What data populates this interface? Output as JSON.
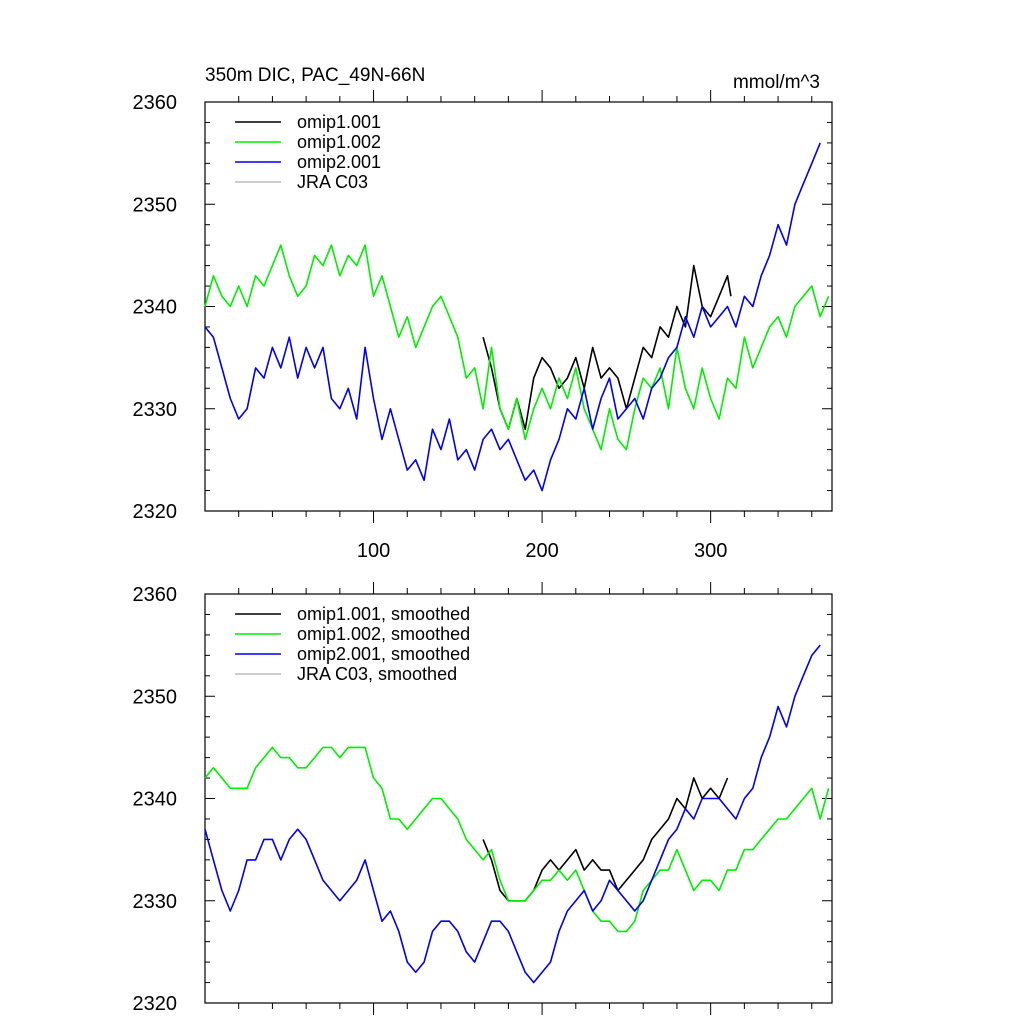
{
  "chart_data": [
    {
      "type": "line",
      "title": "350m DIC, PAC_49N-66N",
      "units": "mmol/m^3",
      "xlabel": "",
      "ylabel": "",
      "xlim": [
        0,
        372
      ],
      "ylim": [
        2320,
        2360
      ],
      "x_ticks": [
        100,
        200,
        300
      ],
      "y_ticks": [
        2320,
        2330,
        2340,
        2350,
        2360
      ],
      "legend": [
        "omip1.001",
        "omip1.002",
        "omip2.001",
        "JRA C03"
      ],
      "series": [
        {
          "name": "omip1.001",
          "color": "#000000",
          "x": [
            165,
            170,
            175,
            180,
            185,
            190,
            195,
            200,
            205,
            210,
            215,
            220,
            225,
            230,
            235,
            240,
            245,
            250,
            255,
            260,
            265,
            270,
            275,
            280,
            285,
            290,
            295,
            300,
            305,
            310,
            312
          ],
          "y": [
            2337,
            2334,
            2330,
            2328,
            2331,
            2328,
            2333,
            2335,
            2334,
            2332,
            2333,
            2335,
            2332,
            2336,
            2333,
            2334,
            2333,
            2330,
            2333,
            2336,
            2335,
            2338,
            2337,
            2340,
            2338,
            2344,
            2340,
            2339,
            2341,
            2343,
            2341
          ]
        },
        {
          "name": "omip1.002",
          "color": "#00ee00",
          "x": [
            0,
            5,
            10,
            15,
            20,
            25,
            30,
            35,
            40,
            45,
            50,
            55,
            60,
            65,
            70,
            75,
            80,
            85,
            90,
            95,
            100,
            105,
            110,
            115,
            120,
            125,
            130,
            135,
            140,
            145,
            150,
            155,
            160,
            165,
            170,
            175,
            180,
            185,
            190,
            195,
            200,
            205,
            210,
            215,
            220,
            225,
            230,
            235,
            240,
            245,
            250,
            255,
            260,
            265,
            270,
            275,
            280,
            285,
            290,
            295,
            300,
            305,
            310,
            315,
            320,
            325,
            330,
            335,
            340,
            345,
            350,
            355,
            360,
            365,
            370
          ],
          "y": [
            2340,
            2343,
            2341,
            2340,
            2342,
            2340,
            2343,
            2342,
            2344,
            2346,
            2343,
            2341,
            2342,
            2345,
            2344,
            2346,
            2343,
            2345,
            2344,
            2346,
            2341,
            2343,
            2340,
            2337,
            2339,
            2336,
            2338,
            2340,
            2341,
            2339,
            2337,
            2333,
            2334,
            2330,
            2336,
            2330,
            2328,
            2331,
            2327,
            2330,
            2332,
            2330,
            2333,
            2331,
            2334,
            2330,
            2328,
            2326,
            2330,
            2327,
            2326,
            2330,
            2333,
            2332,
            2334,
            2330,
            2336,
            2332,
            2330,
            2334,
            2331,
            2329,
            2333,
            2332,
            2337,
            2334,
            2336,
            2338,
            2339,
            2337,
            2340,
            2341,
            2342,
            2339,
            2341
          ]
        },
        {
          "name": "omip2.001",
          "color": "#0000ee",
          "x": [
            0,
            5,
            10,
            15,
            20,
            25,
            30,
            35,
            40,
            45,
            50,
            55,
            60,
            65,
            70,
            75,
            80,
            85,
            90,
            95,
            100,
            105,
            110,
            115,
            120,
            125,
            130,
            135,
            140,
            145,
            150,
            155,
            160,
            165,
            170,
            175,
            180,
            185,
            190,
            195,
            200,
            205,
            210,
            215,
            220,
            225,
            230,
            235,
            240,
            245,
            250,
            255,
            260,
            265,
            270,
            275,
            280,
            285,
            290,
            295,
            300,
            305,
            310,
            315,
            320,
            325,
            330,
            335,
            340,
            345,
            350,
            355,
            360,
            365
          ],
          "y": [
            2338,
            2337,
            2334,
            2331,
            2329,
            2330,
            2334,
            2333,
            2336,
            2334,
            2337,
            2333,
            2336,
            2334,
            2336,
            2331,
            2330,
            2332,
            2329,
            2336,
            2331,
            2327,
            2330,
            2327,
            2324,
            2325,
            2323,
            2328,
            2326,
            2329,
            2325,
            2326,
            2324,
            2327,
            2328,
            2326,
            2327,
            2325,
            2323,
            2324,
            2322,
            2325,
            2327,
            2330,
            2329,
            2332,
            2328,
            2331,
            2333,
            2329,
            2330,
            2331,
            2329,
            2332,
            2333,
            2335,
            2336,
            2339,
            2337,
            2340,
            2338,
            2339,
            2340,
            2338,
            2341,
            2340,
            2343,
            2345,
            2348,
            2346,
            2350,
            2352,
            2354,
            2356
          ]
        },
        {
          "name": "JRA C03",
          "color": "#bbbbbb",
          "x": [],
          "y": []
        }
      ]
    },
    {
      "type": "line",
      "title": "",
      "units": "",
      "xlabel": "",
      "ylabel": "",
      "xlim": [
        0,
        372
      ],
      "ylim": [
        2320,
        2360
      ],
      "x_ticks": [
        100,
        200,
        300
      ],
      "y_ticks": [
        2320,
        2330,
        2340,
        2350,
        2360
      ],
      "legend": [
        "omip1.001, smoothed",
        "omip1.002, smoothed",
        "omip2.001, smoothed",
        "JRA C03, smoothed"
      ],
      "series": [
        {
          "name": "omip1.001, smoothed",
          "color": "#000000",
          "x": [
            165,
            170,
            175,
            180,
            185,
            190,
            195,
            200,
            205,
            210,
            215,
            220,
            225,
            230,
            235,
            240,
            245,
            250,
            255,
            260,
            265,
            270,
            275,
            280,
            285,
            290,
            295,
            300,
            305,
            310
          ],
          "y": [
            2336,
            2334,
            2331,
            2330,
            2330,
            2330,
            2331,
            2333,
            2334,
            2333,
            2334,
            2335,
            2333,
            2334,
            2333,
            2333,
            2331,
            2332,
            2333,
            2334,
            2336,
            2337,
            2338,
            2340,
            2339,
            2342,
            2340,
            2341,
            2340,
            2342
          ]
        },
        {
          "name": "omip1.002, smoothed",
          "color": "#00ee00",
          "x": [
            0,
            5,
            10,
            15,
            20,
            25,
            30,
            35,
            40,
            45,
            50,
            55,
            60,
            65,
            70,
            75,
            80,
            85,
            90,
            95,
            100,
            105,
            110,
            115,
            120,
            125,
            130,
            135,
            140,
            145,
            150,
            155,
            160,
            165,
            170,
            175,
            180,
            185,
            190,
            195,
            200,
            205,
            210,
            215,
            220,
            225,
            230,
            235,
            240,
            245,
            250,
            255,
            260,
            265,
            270,
            275,
            280,
            285,
            290,
            295,
            300,
            305,
            310,
            315,
            320,
            325,
            330,
            335,
            340,
            345,
            350,
            355,
            360,
            365,
            370
          ],
          "y": [
            2342,
            2343,
            2342,
            2341,
            2341,
            2341,
            2343,
            2344,
            2345,
            2344,
            2344,
            2343,
            2343,
            2344,
            2345,
            2345,
            2344,
            2345,
            2345,
            2345,
            2342,
            2341,
            2338,
            2338,
            2337,
            2338,
            2339,
            2340,
            2340,
            2339,
            2338,
            2336,
            2335,
            2334,
            2335,
            2332,
            2330,
            2330,
            2330,
            2331,
            2332,
            2332,
            2333,
            2332,
            2333,
            2331,
            2329,
            2328,
            2328,
            2327,
            2327,
            2328,
            2331,
            2332,
            2333,
            2333,
            2335,
            2333,
            2331,
            2332,
            2332,
            2331,
            2333,
            2333,
            2335,
            2335,
            2336,
            2337,
            2338,
            2338,
            2339,
            2340,
            2341,
            2338,
            2341
          ]
        },
        {
          "name": "omip2.001, smoothed",
          "color": "#0000ee",
          "x": [
            0,
            5,
            10,
            15,
            20,
            25,
            30,
            35,
            40,
            45,
            50,
            55,
            60,
            65,
            70,
            75,
            80,
            85,
            90,
            95,
            100,
            105,
            110,
            115,
            120,
            125,
            130,
            135,
            140,
            145,
            150,
            155,
            160,
            165,
            170,
            175,
            180,
            185,
            190,
            195,
            200,
            205,
            210,
            215,
            220,
            225,
            230,
            235,
            240,
            245,
            250,
            255,
            260,
            265,
            270,
            275,
            280,
            285,
            290,
            295,
            300,
            305,
            310,
            315,
            320,
            325,
            330,
            335,
            340,
            345,
            350,
            355,
            360,
            365
          ],
          "y": [
            2337,
            2334,
            2331,
            2329,
            2331,
            2334,
            2334,
            2336,
            2336,
            2334,
            2336,
            2337,
            2336,
            2334,
            2332,
            2331,
            2330,
            2331,
            2332,
            2334,
            2331,
            2328,
            2329,
            2327,
            2324,
            2323,
            2324,
            2327,
            2328,
            2328,
            2327,
            2325,
            2324,
            2326,
            2328,
            2328,
            2327,
            2325,
            2323,
            2322,
            2323,
            2324,
            2327,
            2329,
            2330,
            2331,
            2329,
            2330,
            2332,
            2331,
            2330,
            2329,
            2330,
            2332,
            2334,
            2336,
            2337,
            2339,
            2338,
            2340,
            2340,
            2340,
            2339,
            2338,
            2340,
            2341,
            2344,
            2346,
            2349,
            2347,
            2350,
            2352,
            2354,
            2355
          ]
        },
        {
          "name": "JRA C03, smoothed",
          "color": "#bbbbbb",
          "x": [],
          "y": []
        }
      ]
    }
  ]
}
